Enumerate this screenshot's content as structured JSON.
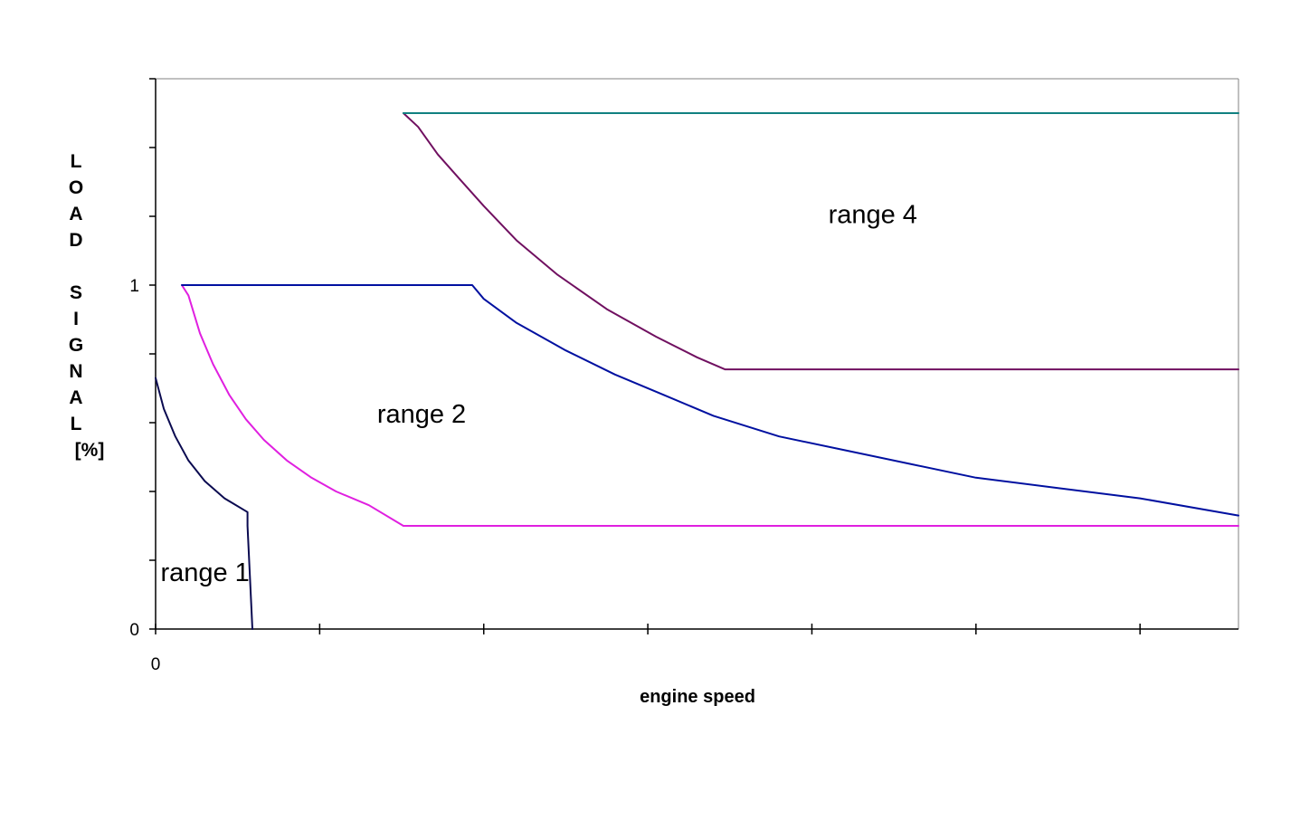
{
  "chart_data": {
    "type": "line",
    "title": "",
    "xlabel": "engine speed",
    "ylabel_letters": [
      "L",
      "O",
      "A",
      "D",
      "",
      "S",
      "I",
      "G",
      "N",
      "A",
      "L",
      "[%]"
    ],
    "xlim": [
      0,
      6.6
    ],
    "ylim": [
      0,
      1.6
    ],
    "x_ticks": [
      0,
      1,
      2,
      3,
      4,
      5,
      6
    ],
    "x_tick_labels": [
      {
        "value": 0,
        "label": "0"
      }
    ],
    "y_ticks": [
      0,
      0.2,
      0.4,
      0.6,
      0.8,
      1.0,
      1.2,
      1.4,
      1.6
    ],
    "y_tick_labels": [
      {
        "value": 0,
        "label": "0"
      },
      {
        "value": 1,
        "label": "1"
      }
    ],
    "grid": false,
    "series": [
      {
        "color": "#0a0a50",
        "points": [
          [
            0,
            0.73
          ],
          [
            0.05,
            0.64
          ],
          [
            0.12,
            0.56
          ],
          [
            0.2,
            0.49
          ],
          [
            0.3,
            0.43
          ],
          [
            0.42,
            0.38
          ],
          [
            0.56,
            0.34
          ],
          [
            0.56,
            0.3
          ],
          [
            0.59,
            0.0
          ]
        ]
      },
      {
        "color": "#e020e0",
        "points": [
          [
            0.16,
            1.0
          ],
          [
            0.2,
            0.97
          ],
          [
            0.27,
            0.86
          ],
          [
            0.35,
            0.77
          ],
          [
            0.45,
            0.68
          ],
          [
            0.55,
            0.61
          ],
          [
            0.66,
            0.55
          ],
          [
            0.8,
            0.49
          ],
          [
            0.95,
            0.44
          ],
          [
            1.1,
            0.4
          ],
          [
            1.3,
            0.36
          ],
          [
            1.51,
            0.3
          ],
          [
            6.6,
            0.3
          ]
        ]
      },
      {
        "color": "#0010a0",
        "points": [
          [
            0.16,
            1.0
          ],
          [
            1.93,
            1.0
          ],
          [
            2.0,
            0.96
          ],
          [
            2.2,
            0.89
          ],
          [
            2.5,
            0.81
          ],
          [
            2.8,
            0.74
          ],
          [
            3.1,
            0.68
          ],
          [
            3.4,
            0.62
          ],
          [
            3.8,
            0.56
          ],
          [
            4.2,
            0.52
          ],
          [
            4.6,
            0.48
          ],
          [
            5.0,
            0.44
          ],
          [
            5.5,
            0.41
          ],
          [
            6.0,
            0.38
          ],
          [
            6.6,
            0.33
          ]
        ]
      },
      {
        "color": "#701060",
        "points": [
          [
            1.51,
            1.5
          ],
          [
            1.6,
            1.46
          ],
          [
            1.72,
            1.38
          ],
          [
            1.85,
            1.31
          ],
          [
            2.0,
            1.23
          ],
          [
            2.2,
            1.13
          ],
          [
            2.45,
            1.03
          ],
          [
            2.75,
            0.93
          ],
          [
            3.05,
            0.85
          ],
          [
            3.3,
            0.79
          ],
          [
            3.47,
            0.755
          ],
          [
            6.6,
            0.755
          ]
        ]
      },
      {
        "color": "#108080",
        "points": [
          [
            1.51,
            1.5
          ],
          [
            6.6,
            1.5
          ]
        ]
      }
    ],
    "annotations": [
      {
        "text": "range 1",
        "x": 0.03,
        "y": 0.14
      },
      {
        "text": "range 2",
        "x": 1.35,
        "y": 0.6
      },
      {
        "text": "range 4",
        "x": 4.1,
        "y": 1.18
      }
    ]
  }
}
